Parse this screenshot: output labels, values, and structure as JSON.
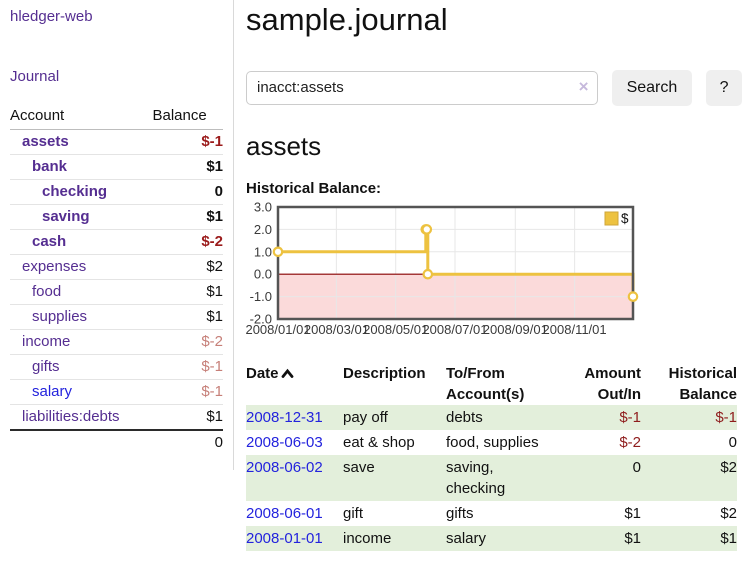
{
  "app_title": "hledger-web",
  "colors": {
    "link_purple": "#552e91",
    "link_blue": "#2323dd",
    "negative_bold": "#9b1b1b",
    "negative_faded": "#c67f78",
    "register_negative": "#8f1d1d",
    "row_stripe_green": "#e3efdb",
    "series_yellow": "#edc240",
    "negative_region_pink": "#fbdada",
    "zero_line_red": "#8b0000"
  },
  "sidebar": {
    "journal_link": "Journal",
    "account_header": "Account",
    "balance_header": "Balance",
    "accounts": [
      {
        "name": "assets",
        "balance": "$-1",
        "indent": 1,
        "bold": true,
        "link": "purple"
      },
      {
        "name": "bank",
        "balance": "$1",
        "indent": 2,
        "bold": true,
        "link": "purple"
      },
      {
        "name": "checking",
        "balance": "0",
        "indent": 3,
        "bold": true,
        "link": "purple"
      },
      {
        "name": "saving",
        "balance": "$1",
        "indent": 3,
        "bold": true,
        "link": "purple"
      },
      {
        "name": "cash",
        "balance": "$-2",
        "indent": 2,
        "bold": true,
        "link": "purple"
      },
      {
        "name": "expenses",
        "balance": "$2",
        "indent": 1,
        "bold": false,
        "link": "purple"
      },
      {
        "name": "food",
        "balance": "$1",
        "indent": 2,
        "bold": false,
        "link": "purple"
      },
      {
        "name": "supplies",
        "balance": "$1",
        "indent": 2,
        "bold": false,
        "link": "purple"
      },
      {
        "name": "income",
        "balance": "$-2",
        "indent": 1,
        "bold": false,
        "link": "purple"
      },
      {
        "name": "gifts",
        "balance": "$-1",
        "indent": 2,
        "bold": false,
        "link": "purple"
      },
      {
        "name": "salary",
        "balance": "$-1",
        "indent": 2,
        "bold": false,
        "link": "blue"
      },
      {
        "name": "liabilities:debts",
        "balance": "$1",
        "indent": 1,
        "bold": false,
        "link": "purple"
      }
    ],
    "total": "0"
  },
  "main": {
    "title": "sample.journal",
    "search": {
      "value": "inacct:assets",
      "clear": "×",
      "search_button": "Search",
      "help_button": "?"
    },
    "account_heading": "assets",
    "chart_title": "Historical Balance:"
  },
  "chart_data": {
    "type": "line",
    "step": true,
    "title": "Historical Balance:",
    "legend_position": "top-right",
    "grid": true,
    "xlim": [
      "2008-01-01",
      "2008-12-31"
    ],
    "ylim": [
      -2,
      3
    ],
    "y_ticks": [
      "3.0",
      "2.0",
      "1.0",
      "0.0",
      "-1.0",
      "-2.0"
    ],
    "x_ticks": [
      {
        "date": "2008-01-01",
        "label": "2008/01/01"
      },
      {
        "date": "2008-03-01",
        "label": "2008/03/01"
      },
      {
        "date": "2008-05-01",
        "label": "2008/05/01"
      },
      {
        "date": "2008-07-01",
        "label": "2008/07/01"
      },
      {
        "date": "2008-09-01",
        "label": "2008/09/01"
      },
      {
        "date": "2008-11-01",
        "label": "2008/11/01"
      }
    ],
    "series": [
      {
        "name": "$",
        "color": "#edc240",
        "points": [
          [
            "2008-01-01",
            1
          ],
          [
            "2008-06-01",
            2
          ],
          [
            "2008-06-02",
            2
          ],
          [
            "2008-06-03",
            0
          ],
          [
            "2008-12-31",
            -1
          ]
        ]
      }
    ],
    "negative_region": true,
    "negative_region_color": "#fbdada",
    "zero_line_color": "#8b0000"
  },
  "register": {
    "headers": {
      "date": "Date",
      "description": "Description",
      "account": "To/From Account(s)",
      "amount": "Amount Out/In",
      "balance": "Historical Balance"
    },
    "sort": {
      "column": "date",
      "direction": "ascending"
    },
    "rows": [
      {
        "date": "2008-12-31",
        "description": "pay off",
        "accounts": "debts",
        "amount": "$-1",
        "balance": "$-1"
      },
      {
        "date": "2008-06-03",
        "description": "eat & shop",
        "accounts": "food, supplies",
        "amount": "$-2",
        "balance": "0"
      },
      {
        "date": "2008-06-02",
        "description": "save",
        "accounts": "saving,\nchecking",
        "amount": "0",
        "balance": "$2"
      },
      {
        "date": "2008-06-01",
        "description": "gift",
        "accounts": "gifts",
        "amount": "$1",
        "balance": "$2"
      },
      {
        "date": "2008-01-01",
        "description": "income",
        "accounts": "salary",
        "amount": "$1",
        "balance": "$1"
      }
    ]
  }
}
